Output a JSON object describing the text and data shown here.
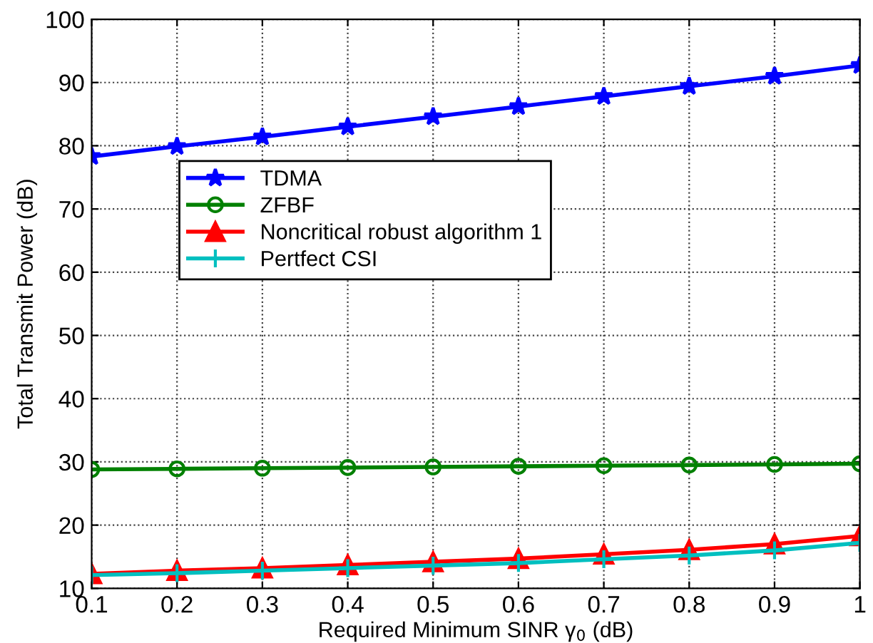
{
  "chart_data": {
    "type": "line",
    "xlabel": "Required Minimum SINR γ$_{0}$ (dB)",
    "ylabel": "Total Transmit Power (dB)",
    "x": [
      0.1,
      0.2,
      0.3,
      0.4,
      0.5,
      0.6,
      0.7,
      0.8,
      0.9,
      1
    ],
    "series": [
      {
        "name": "TDMA",
        "color": "#0000ff",
        "marker": "star",
        "values": [
          78.3,
          79.9,
          81.4,
          83.0,
          84.6,
          86.2,
          87.8,
          89.4,
          91.0,
          92.7
        ]
      },
      {
        "name": "ZFBF",
        "color": "#008000",
        "marker": "circle",
        "values": [
          28.8,
          28.9,
          29.0,
          29.1,
          29.2,
          29.3,
          29.4,
          29.5,
          29.6,
          29.7
        ]
      },
      {
        "name": "Noncritical robust algorithm 1",
        "color": "#ff0000",
        "marker": "triangle",
        "values": [
          12.3,
          12.8,
          13.2,
          13.7,
          14.2,
          14.7,
          15.4,
          16.1,
          17.0,
          18.3
        ]
      },
      {
        "name": "Pertfect CSI",
        "color": "#00bfbf",
        "marker": "cross",
        "values": [
          12.1,
          12.4,
          12.8,
          13.2,
          13.6,
          14.0,
          14.6,
          15.2,
          16.0,
          17.2
        ]
      }
    ],
    "xlim": [
      0.1,
      1
    ],
    "xticks": [
      0.1,
      0.2,
      0.3,
      0.4,
      0.5,
      0.6,
      0.7,
      0.8,
      0.9,
      1
    ],
    "ylim": [
      10,
      100
    ],
    "yticks": [
      10,
      20,
      30,
      40,
      50,
      60,
      70,
      80,
      90,
      100
    ],
    "grid": true,
    "legend": "top left",
    "line_style": "solid"
  }
}
